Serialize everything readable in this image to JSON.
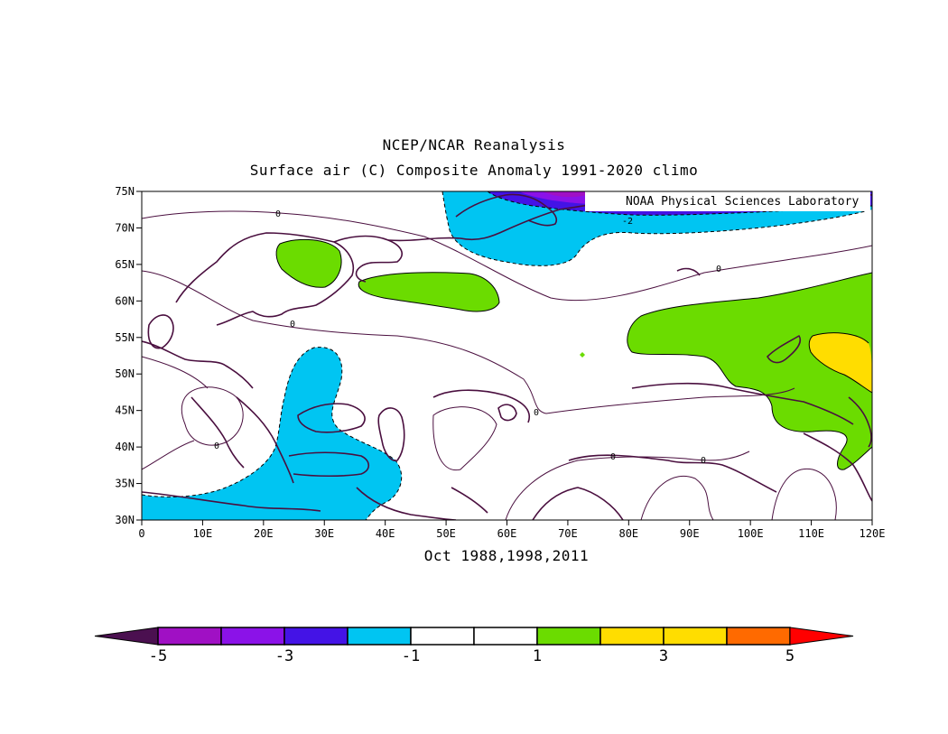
{
  "figure": {
    "title_line1": "NCEP/NCAR Reanalysis",
    "title_line2": "Surface air (C) Composite Anomaly 1991-2020 climo",
    "subtitle": "Oct 1988,1998,2011",
    "credit": "NOAA Physical Sciences Laboratory"
  },
  "map": {
    "projection": "equirectangular",
    "lon_range": [
      0,
      120
    ],
    "lat_range": [
      30,
      75
    ],
    "lat_tick_labels": [
      "30N",
      "35N",
      "40N",
      "45N",
      "50N",
      "55N",
      "60N",
      "65N",
      "70N",
      "75N"
    ],
    "lon_tick_labels": [
      "0",
      "10E",
      "20E",
      "30E",
      "40E",
      "50E",
      "60E",
      "70E",
      "80E",
      "90E",
      "100E",
      "110E",
      "120E"
    ],
    "contour_labels": [
      "0",
      "0",
      "0",
      "0",
      "0",
      "0",
      "0",
      "-2"
    ],
    "colors": {
      "coast": "#4a0f3f",
      "contour": "#4a0f3f",
      "cool_fill": "#00c5f2",
      "cold_fill": "#4413e6",
      "colder_fill": "#8b12e8",
      "coldest_fill": "#a010c4",
      "warm_fill": "#6bdc00",
      "warmer_fill": "#ffdd00"
    }
  },
  "colorbar": {
    "tick_labels": [
      "-5",
      "-3",
      "-1",
      "1",
      "3",
      "5"
    ],
    "bins": [
      {
        "color": "#4b1050"
      },
      {
        "color": "#a010c4"
      },
      {
        "color": "#8b12e8"
      },
      {
        "color": "#4413e6"
      },
      {
        "color": "#00c5f2"
      },
      {
        "color": "#ffffff"
      },
      {
        "color": "#ffffff"
      },
      {
        "color": "#6bdc00"
      },
      {
        "color": "#ffdd00"
      },
      {
        "color": "#ffdd00"
      },
      {
        "color": "#ff6a00"
      },
      {
        "color": "#ff0000"
      }
    ]
  }
}
